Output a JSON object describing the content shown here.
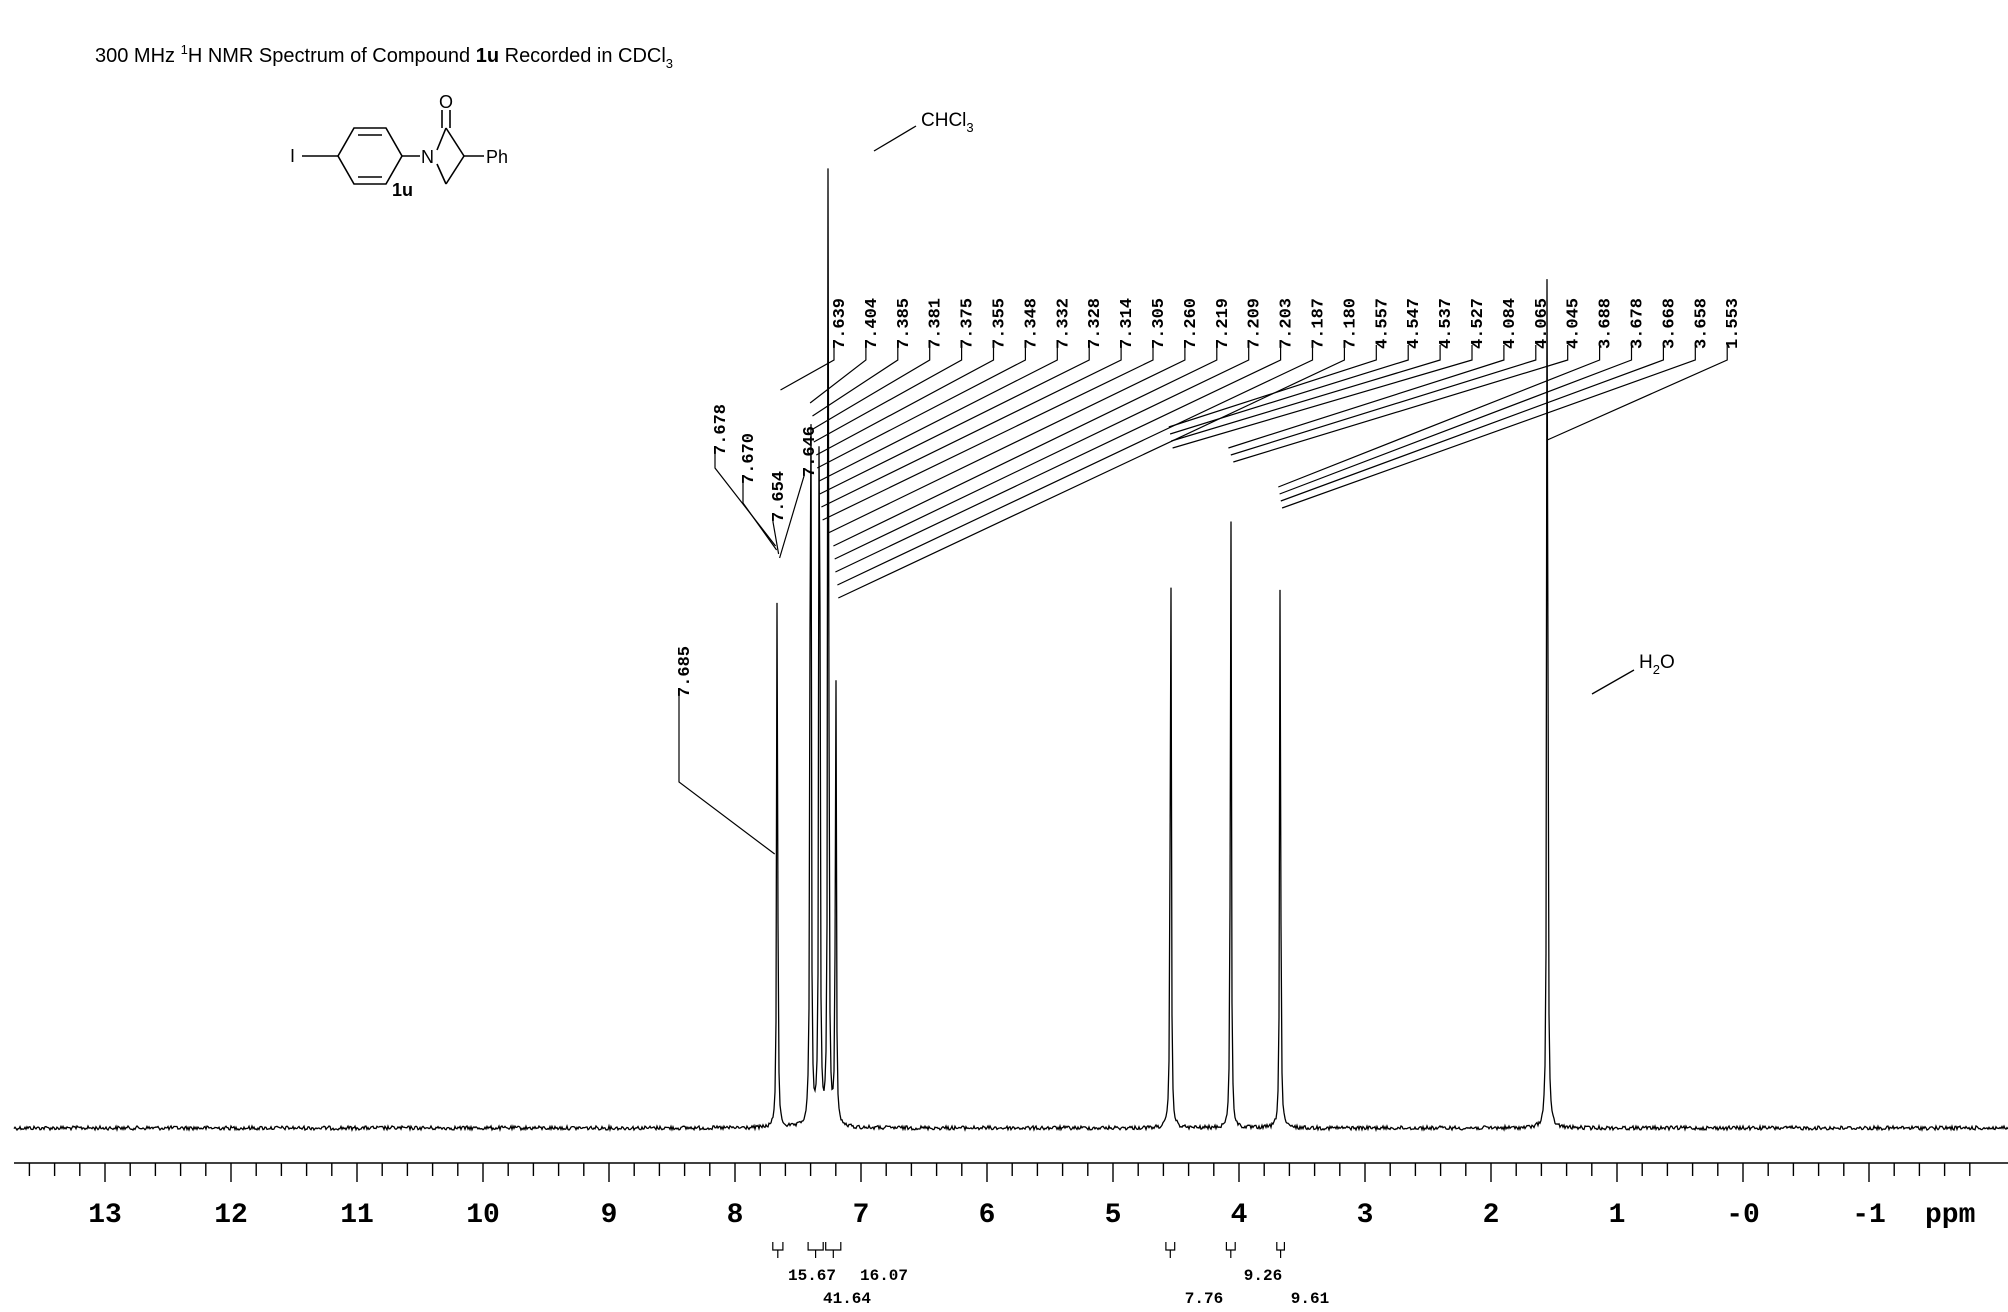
{
  "chart_data": {
    "type": "line",
    "title_parts": {
      "pre": "300 MHz ",
      "sup": "1",
      "mid": "H NMR Spectrum of Compound ",
      "bold": "1u",
      "post": " Recorded in CDCl",
      "sub": "3"
    },
    "xlabel": "ppm",
    "xlim": [
      14.0,
      -2.0
    ],
    "x_reversed": true,
    "tick_labels": [
      "13",
      "12",
      "11",
      "10",
      "9",
      "8",
      "7",
      "6",
      "5",
      "4",
      "3",
      "2",
      "1",
      "-0",
      "-1"
    ],
    "tick_values": [
      13,
      12,
      11,
      10,
      9,
      8,
      7,
      6,
      5,
      4,
      3,
      2,
      1,
      0,
      -1
    ],
    "series": [
      {
        "peaks": [
          {
            "x": 7.665,
            "y": 0.53
          },
          {
            "x": 7.4,
            "y": 0.93
          },
          {
            "x": 7.33,
            "y": 0.93
          },
          {
            "x": 7.26,
            "y": 1.0
          },
          {
            "x": 7.2,
            "y": 0.44
          },
          {
            "x": 4.542,
            "y": 0.61
          },
          {
            "x": 4.065,
            "y": 0.6
          },
          {
            "x": 3.673,
            "y": 0.54
          },
          {
            "x": 1.553,
            "y": 1.0
          }
        ]
      }
    ],
    "peak_labels": [
      "7.685",
      "7.678",
      "7.670",
      "7.654",
      "7.646",
      "7.639",
      "7.404",
      "7.385",
      "7.381",
      "7.375",
      "7.355",
      "7.348",
      "7.332",
      "7.328",
      "7.314",
      "7.305",
      "7.260",
      "7.219",
      "7.209",
      "7.203",
      "7.187",
      "7.180",
      "4.557",
      "4.547",
      "4.537",
      "4.527",
      "4.084",
      "4.065",
      "4.045",
      "3.688",
      "3.678",
      "3.668",
      "3.658",
      "1.553"
    ],
    "integrals": [
      {
        "label": "15.67",
        "from": 7.7,
        "to": 7.62
      },
      {
        "label": "16.07",
        "from": 7.42,
        "to": 7.3
      },
      {
        "label": "41.64",
        "from": 7.28,
        "to": 7.16
      },
      {
        "label": "7.76",
        "from": 4.58,
        "to": 4.51
      },
      {
        "label": "9.26",
        "from": 4.1,
        "to": 4.03
      },
      {
        "label": "9.61",
        "from": 3.7,
        "to": 3.64
      }
    ],
    "annotations": {
      "solvent": {
        "text": "CHCl",
        "sub": "3"
      },
      "water": {
        "text": "H",
        "sub": "2",
        "post": "O"
      }
    },
    "structure": {
      "iodo": "I",
      "nitrogen": "N",
      "oxygen": "O",
      "phenyl": "Ph",
      "compound": "1u"
    },
    "grid": false,
    "legend": "none"
  }
}
